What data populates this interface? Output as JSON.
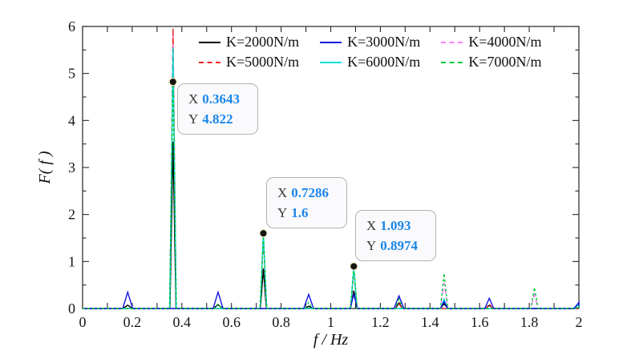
{
  "axes": {
    "xlabel": "f / Hz",
    "ylabel": "F( f )"
  },
  "legend": {
    "entries": [
      {
        "label": "K=2000N/m",
        "color": "#000000",
        "dash": "solid"
      },
      {
        "label": "K=3000N/m",
        "color": "#1414e0",
        "dash": "solid"
      },
      {
        "label": "K=4000N/m",
        "color": "#ff7dff",
        "dash": "dashed"
      },
      {
        "label": "K=5000N/m",
        "color": "#e82020",
        "dash": "dashed"
      },
      {
        "label": "K=6000N/m",
        "color": "#00dede",
        "dash": "solid"
      },
      {
        "label": "K=7000N/m",
        "color": "#00cc33",
        "dash": "dotted"
      }
    ]
  },
  "annotations": [
    {
      "x_label": "X",
      "x_value": "0.3643",
      "y_label": "Y",
      "y_value": "4.822"
    },
    {
      "x_label": "X",
      "x_value": "0.7286",
      "y_label": "Y",
      "y_value": "1.6"
    },
    {
      "x_label": "X",
      "x_value": "1.093",
      "y_label": "Y",
      "y_value": "0.8974"
    }
  ],
  "chart_data": {
    "type": "line",
    "title": "",
    "xlabel": "f / Hz",
    "ylabel": "F( f )",
    "xlim": [
      0,
      2
    ],
    "ylim": [
      0,
      6
    ],
    "grid": false,
    "legend_position": "top-inside",
    "x_ticks": {
      "values": [
        0,
        0.2,
        0.4,
        0.6,
        0.8,
        1,
        1.2,
        1.4,
        1.6,
        1.8,
        2
      ],
      "labels": [
        "0",
        "0.2",
        "0.4",
        "0.6",
        "0.8",
        "1",
        "1.2",
        "1.4",
        "1.6",
        "1.8",
        "2"
      ],
      "minor_step": 0.1
    },
    "y_ticks": {
      "values": [
        0,
        1,
        2,
        3,
        4,
        5,
        6
      ],
      "labels": [
        "0",
        "1",
        "2",
        "3",
        "4",
        "5",
        "6"
      ],
      "minor_step": 0.5
    },
    "series_note": "spectral spikes: each peak is [center_Hz, height, halfwidth_Hz], baseline 0 elsewhere",
    "series": [
      {
        "name": "K=2000N/m",
        "color": "#000000",
        "dash": "solid",
        "peaks": [
          [
            0.182,
            0.07,
            0.02
          ],
          [
            0.3643,
            3.55,
            0.012
          ],
          [
            0.546,
            0.08,
            0.02
          ],
          [
            0.7286,
            0.85,
            0.012
          ],
          [
            0.911,
            0.05,
            0.015
          ],
          [
            1.093,
            0.38,
            0.013
          ],
          [
            1.275,
            0.12,
            0.015
          ],
          [
            1.457,
            0.1,
            0.015
          ],
          [
            1.639,
            0.07,
            0.015
          ]
        ]
      },
      {
        "name": "K=4000N/m",
        "color": "#ff7dff",
        "dash": "dashed",
        "peaks": [
          [
            0.3643,
            5.85,
            0.013
          ],
          [
            0.7286,
            1.5,
            0.013
          ],
          [
            1.093,
            0.8,
            0.013
          ],
          [
            1.457,
            0.55,
            0.015
          ],
          [
            1.821,
            0.3,
            0.015
          ]
        ]
      },
      {
        "name": "K=5000N/m",
        "color": "#e82020",
        "dash": "dashed",
        "peaks": [
          [
            0.3643,
            5.97,
            0.013
          ],
          [
            0.7286,
            1.55,
            0.013
          ],
          [
            1.093,
            0.83,
            0.013
          ],
          [
            1.275,
            0.1,
            0.013
          ],
          [
            1.639,
            0.1,
            0.013
          ]
        ]
      },
      {
        "name": "K=6000N/m",
        "color": "#00dede",
        "dash": "solid",
        "peaks": [
          [
            0.3643,
            5.55,
            0.013
          ],
          [
            0.7286,
            1.6,
            0.013
          ],
          [
            1.093,
            0.87,
            0.013
          ],
          [
            1.457,
            0.2,
            0.013
          ],
          [
            2.0,
            0.1,
            0.015
          ]
        ]
      },
      {
        "name": "K=3000N/m",
        "color": "#1414e0",
        "dash": "solid",
        "peaks": [
          [
            0.182,
            0.35,
            0.02
          ],
          [
            0.546,
            0.35,
            0.02
          ],
          [
            0.911,
            0.3,
            0.02
          ],
          [
            1.093,
            0.3,
            0.015
          ],
          [
            1.275,
            0.27,
            0.02
          ],
          [
            1.457,
            0.15,
            0.015
          ],
          [
            1.639,
            0.22,
            0.018
          ],
          [
            2.0,
            0.13,
            0.02
          ]
        ]
      },
      {
        "name": "K=7000N/m",
        "color": "#00cc33",
        "dash": "dotted",
        "peaks": [
          [
            0.3643,
            4.822,
            0.014
          ],
          [
            0.546,
            0.1,
            0.015
          ],
          [
            0.7286,
            1.55,
            0.014
          ],
          [
            0.911,
            0.13,
            0.015
          ],
          [
            1.093,
            0.8974,
            0.014
          ],
          [
            1.275,
            0.2,
            0.015
          ],
          [
            1.457,
            0.75,
            0.015
          ],
          [
            1.821,
            0.45,
            0.015
          ],
          [
            2.0,
            0.06,
            0.015
          ]
        ]
      }
    ],
    "markers": [
      [
        0.3643,
        4.822
      ],
      [
        0.7286,
        1.6
      ],
      [
        1.093,
        0.8974
      ]
    ]
  }
}
